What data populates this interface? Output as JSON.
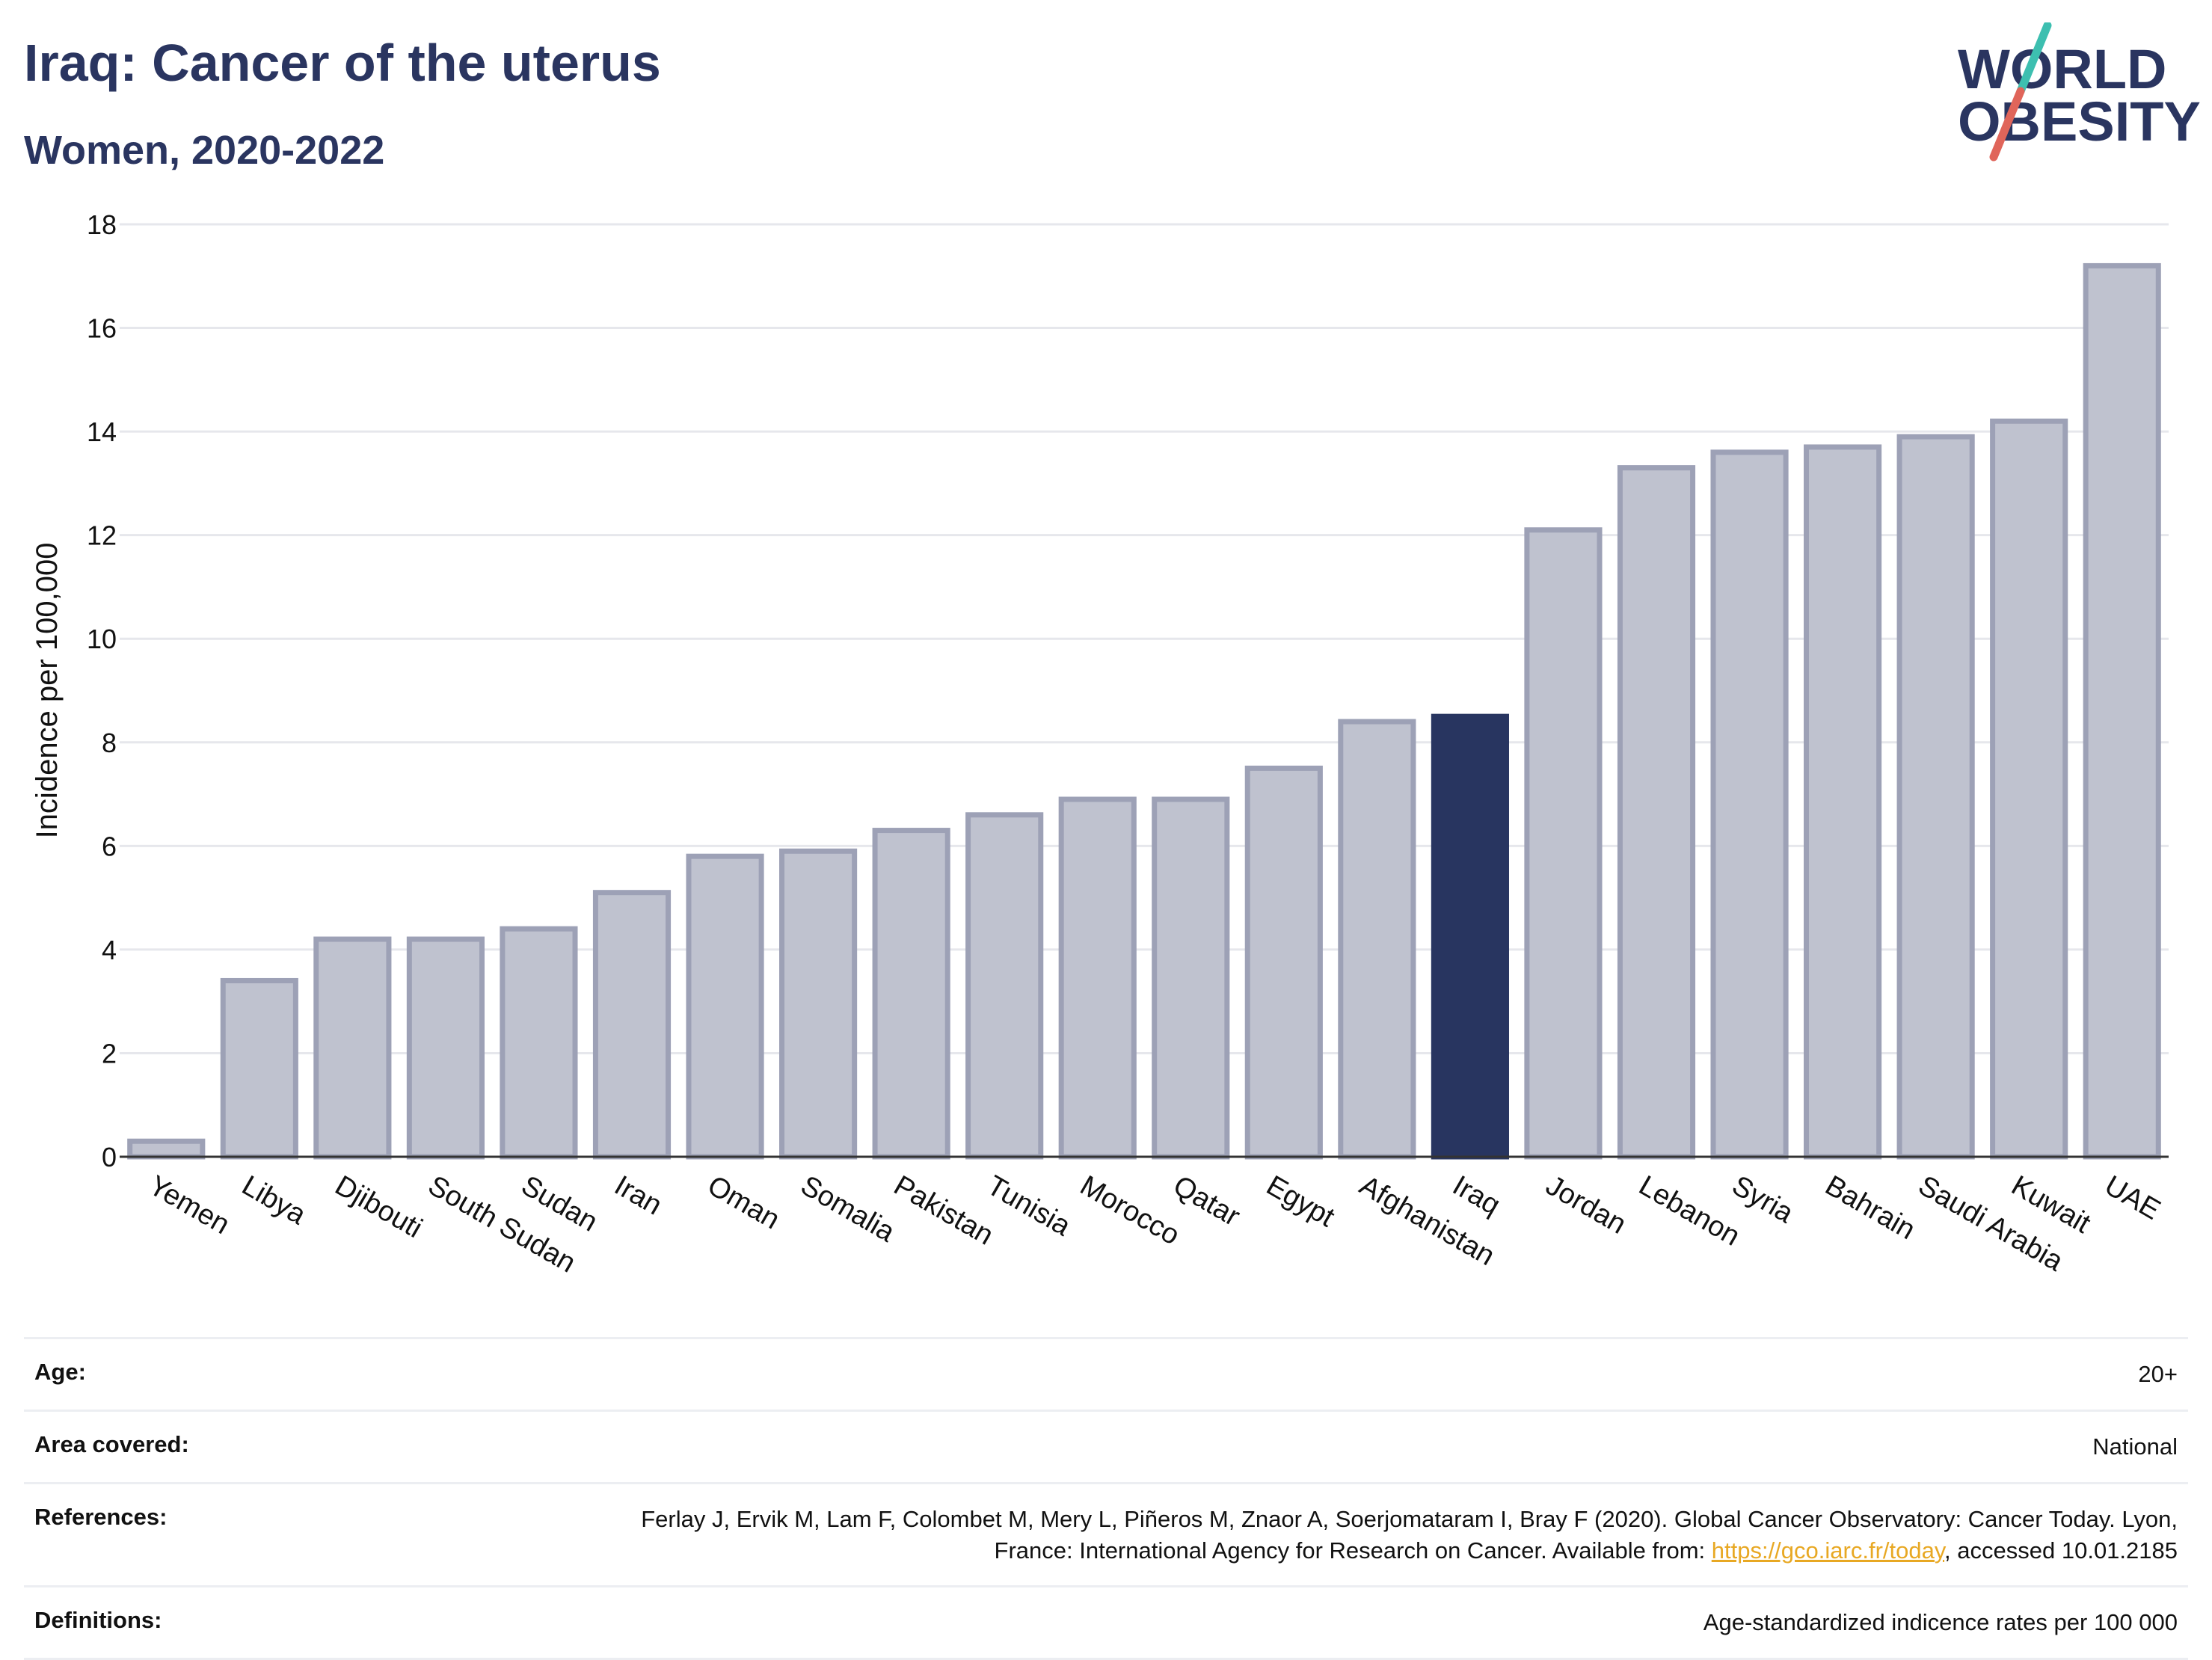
{
  "header": {
    "title": "Iraq: Cancer of the uterus",
    "subtitle": "Women, 2020-2022"
  },
  "logo": {
    "line1": "WORLD",
    "line2": "OBESITY",
    "accent_teal": "#3dbfb0",
    "accent_red": "#e0655a",
    "text_color": "#2a3560"
  },
  "chart_data": {
    "type": "bar",
    "ylabel": "Incidence per 100,000",
    "ylim": [
      0,
      18
    ],
    "yticks": [
      0,
      2,
      4,
      6,
      8,
      10,
      12,
      14,
      16,
      18
    ],
    "grid": true,
    "highlight": "Iraq",
    "bar_color": "#bfc2cf",
    "bar_edge_color": "#9da1b6",
    "highlight_color": "#283560",
    "categories": [
      "Yemen",
      "Libya",
      "Djibouti",
      "South Sudan",
      "Sudan",
      "Iran",
      "Oman",
      "Somalia",
      "Pakistan",
      "Tunisia",
      "Morocco",
      "Qatar",
      "Egypt",
      "Afghanistan",
      "Iraq",
      "Jordan",
      "Lebanon",
      "Syria",
      "Bahrain",
      "Saudi Arabia",
      "Kuwait",
      "UAE"
    ],
    "values": [
      0.3,
      3.4,
      4.2,
      4.2,
      4.4,
      5.1,
      5.8,
      5.9,
      6.3,
      6.6,
      6.9,
      6.9,
      7.5,
      8.4,
      8.5,
      12.1,
      13.3,
      13.6,
      13.7,
      13.9,
      14.2,
      17.2
    ]
  },
  "footer": {
    "age_label": "Age:",
    "age_value": "20+",
    "area_label": "Area covered:",
    "area_value": "National",
    "ref_label": "References:",
    "ref_text_1": "Ferlay J, Ervik M, Lam F, Colombet M, Mery L, Piñeros M, Znaor A, Soerjomataram I, Bray F (2020). Global Cancer Observatory: Cancer Today. Lyon, France: International Agency for Research on Cancer. Available from: ",
    "ref_link": "https://gco.iarc.fr/today",
    "ref_text_2": ", accessed 10.01.2185",
    "def_label": "Definitions:",
    "def_value": "Age-standardized indicence rates per 100 000"
  }
}
